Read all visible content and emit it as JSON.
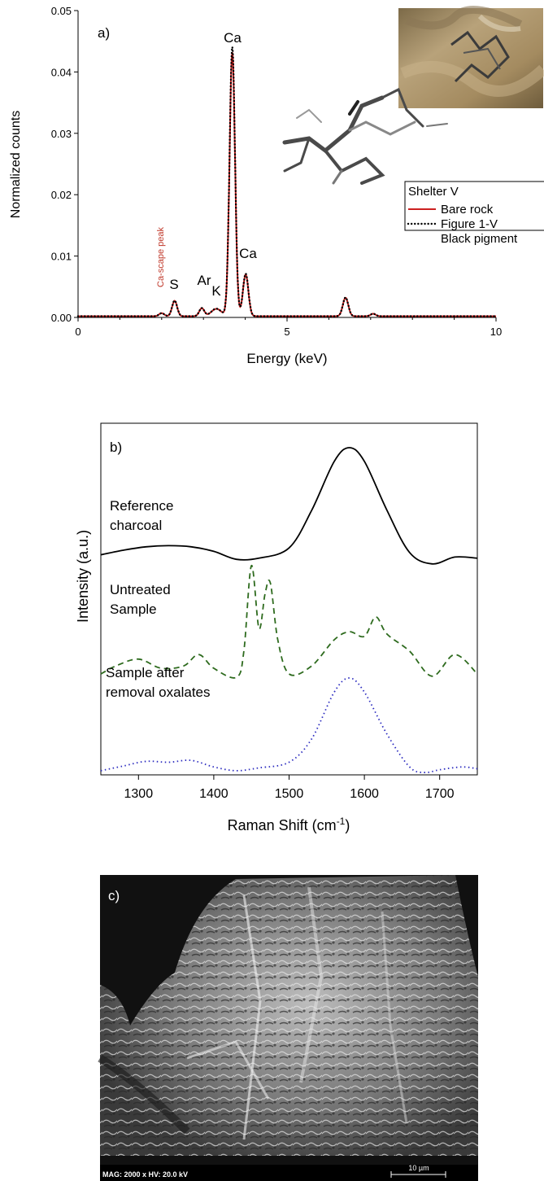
{
  "panel_a": {
    "label": "a)",
    "legend_title": "Shelter V",
    "annotations": {
      "ca_main": "Ca",
      "ca_second": "Ca",
      "s": "S",
      "ar": "Ar",
      "k": "K",
      "escape": "Ca-scape peak"
    },
    "colors": {
      "bare_rock": "#cc2020",
      "figure": "#000000"
    }
  },
  "panel_b": {
    "label": "b)",
    "trace_labels": {
      "reference": [
        "Reference",
        "charcoal"
      ],
      "untreated": [
        "Untreated",
        "Sample"
      ],
      "after": [
        "Sample after",
        "removal oxalates"
      ]
    },
    "colors": {
      "reference": "#000000",
      "untreated": "#2e6b1e",
      "after": "#2b2bbf"
    }
  },
  "panel_c": {
    "label": "c)",
    "info": "MAG: 2000 x  HV: 20.0 kV",
    "scalebar": "10 µm"
  },
  "chart_data": [
    {
      "type": "line",
      "xlabel": "Energy (keV)",
      "ylabel": "Normalized counts",
      "xlim": [
        0,
        10
      ],
      "ylim": [
        0,
        0.05
      ],
      "xticks": [
        "0",
        "5",
        "10"
      ],
      "yticks": [
        "0.00",
        "0.01",
        "0.02",
        "0.03",
        "0.04",
        "0.05"
      ],
      "grid": false,
      "legend_placement": "right",
      "peaks": [
        {
          "center": 2.0,
          "height": 0.0005,
          "width": 0.06
        },
        {
          "center": 2.31,
          "height": 0.0025,
          "width": 0.06
        },
        {
          "center": 2.96,
          "height": 0.0013,
          "width": 0.06
        },
        {
          "center": 3.31,
          "height": 0.0012,
          "width": 0.12
        },
        {
          "center": 3.69,
          "height": 0.043,
          "width": 0.065
        },
        {
          "center": 4.01,
          "height": 0.0068,
          "width": 0.065
        },
        {
          "center": 6.4,
          "height": 0.003,
          "width": 0.065
        },
        {
          "center": 7.06,
          "height": 0.0004,
          "width": 0.06
        }
      ],
      "series": [
        {
          "name": "Bare rock",
          "scale": 1.0
        },
        {
          "name": "Figure 1-V Black pigment",
          "scale": 1.02
        }
      ]
    },
    {
      "type": "line",
      "xlabel": "Raman Shift (cm-1)",
      "ylabel": "Intensity (a.u.)",
      "xlim": [
        1250,
        1750
      ],
      "xticks": [
        "1300",
        "1400",
        "1500",
        "1600",
        "1700"
      ],
      "grid": false,
      "series": [
        {
          "name": "Reference charcoal",
          "x": [
            1250,
            1280,
            1310,
            1340,
            1370,
            1400,
            1430,
            1460,
            1500,
            1530,
            1560,
            1580,
            1600,
            1630,
            1660,
            1690,
            1720,
            1750
          ],
          "y": [
            0.06,
            0.1,
            0.13,
            0.14,
            0.13,
            0.09,
            0.02,
            0.03,
            0.12,
            0.45,
            0.88,
            1.0,
            0.88,
            0.45,
            0.08,
            -0.02,
            0.04,
            0.03
          ]
        },
        {
          "name": "Untreated Sample",
          "x": [
            1250,
            1270,
            1300,
            1330,
            1360,
            1380,
            1400,
            1430,
            1440,
            1450,
            1460,
            1468,
            1475,
            1485,
            1500,
            1530,
            1560,
            1580,
            1600,
            1615,
            1630,
            1660,
            1690,
            1720,
            1750
          ],
          "y": [
            0.05,
            0.12,
            0.18,
            0.1,
            0.12,
            0.22,
            0.1,
            0.02,
            0.25,
            1.0,
            0.45,
            0.75,
            0.85,
            0.35,
            0.05,
            0.12,
            0.35,
            0.42,
            0.38,
            0.55,
            0.4,
            0.25,
            0.03,
            0.22,
            0.05
          ]
        },
        {
          "name": "Sample after removal oxalates",
          "x": [
            1250,
            1280,
            1310,
            1340,
            1370,
            1400,
            1430,
            1460,
            1500,
            1530,
            1560,
            1580,
            1600,
            1630,
            1660,
            1680,
            1700,
            1730,
            1750
          ],
          "y": [
            0.01,
            0.06,
            0.11,
            0.1,
            0.12,
            0.05,
            0.01,
            0.04,
            0.1,
            0.35,
            0.85,
            1.0,
            0.85,
            0.4,
            0.05,
            -0.01,
            0.02,
            0.05,
            0.03
          ]
        }
      ]
    }
  ]
}
